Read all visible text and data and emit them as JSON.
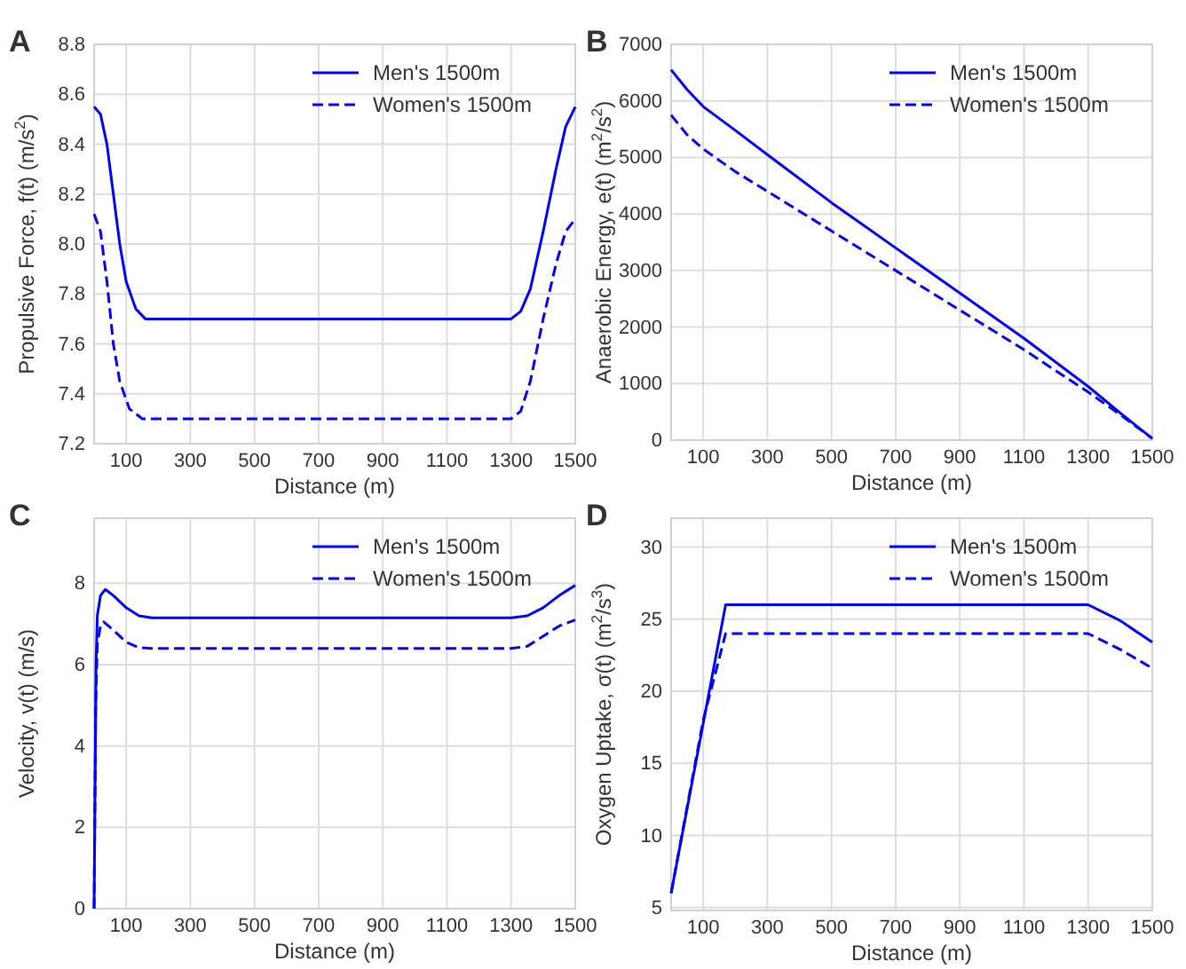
{
  "chart_data": [
    {
      "type": "line",
      "title": "A",
      "xlabel": "Distance (m)",
      "ylabel": "Propulsive Force, f(t)  (m/s$^{2}$)",
      "xlim": [
        0,
        1500
      ],
      "xticks": [
        100,
        300,
        500,
        700,
        900,
        1100,
        1300,
        1500
      ],
      "ylim": [
        7.2,
        8.8
      ],
      "yticks": [
        {
          "value": 7.2,
          "label": "7.2"
        },
        {
          "value": 7.4,
          "label": "7.4"
        },
        {
          "value": 7.6,
          "label": "7.6"
        },
        {
          "value": 7.8,
          "label": "7.8"
        },
        {
          "value": 8.0,
          "label": "8.0"
        },
        {
          "value": 8.2,
          "label": "8.2"
        },
        {
          "value": 8.4,
          "label": "8.4"
        },
        {
          "value": 8.6,
          "label": "8.6"
        },
        {
          "value": 8.8,
          "label": "8.8"
        }
      ],
      "grid": true,
      "legend": "top right",
      "series": [
        {
          "name": "Men's 1500m",
          "color": "#0000ff",
          "line_style": "solid",
          "x": [
            0,
            20,
            40,
            60,
            80,
            100,
            130,
            160,
            1300,
            1330,
            1360,
            1400,
            1440,
            1470,
            1500
          ],
          "values": [
            8.55,
            8.52,
            8.4,
            8.2,
            8.0,
            7.85,
            7.74,
            7.7,
            7.7,
            7.73,
            7.82,
            8.05,
            8.3,
            8.47,
            8.55
          ]
        },
        {
          "name": "Women's 1500m",
          "color": "#0000ff",
          "line_style": "dashed",
          "x": [
            0,
            20,
            40,
            60,
            80,
            110,
            150,
            1300,
            1330,
            1360,
            1400,
            1440,
            1470,
            1500
          ],
          "values": [
            8.12,
            8.05,
            7.85,
            7.6,
            7.45,
            7.34,
            7.3,
            7.3,
            7.33,
            7.45,
            7.7,
            7.92,
            8.05,
            8.1
          ]
        }
      ]
    },
    {
      "type": "line",
      "title": "B",
      "xlabel": "Distance (m)",
      "ylabel": "Anaerobic Energy, e(t)  (m$^{2}$/s$^{2}$)",
      "xlim": [
        0,
        1500
      ],
      "xticks": [
        100,
        300,
        500,
        700,
        900,
        1100,
        1300,
        1500
      ],
      "ylim": [
        0,
        7000
      ],
      "yticks": [
        0,
        1000,
        2000,
        3000,
        4000,
        5000,
        6000,
        7000
      ],
      "grid": true,
      "legend": "top right",
      "series": [
        {
          "name": "Men's 1500m",
          "color": "#0000ff",
          "line_style": "solid",
          "x": [
            0,
            50,
            100,
            200,
            300,
            500,
            700,
            900,
            1100,
            1300,
            1400,
            1500
          ],
          "values": [
            6550,
            6200,
            5900,
            5480,
            5050,
            4200,
            3400,
            2600,
            1800,
            950,
            480,
            30
          ]
        },
        {
          "name": "Women's 1500m",
          "color": "#0000ff",
          "line_style": "dashed",
          "x": [
            0,
            50,
            100,
            200,
            300,
            500,
            700,
            900,
            1100,
            1300,
            1400,
            1500
          ],
          "values": [
            5750,
            5400,
            5150,
            4750,
            4400,
            3700,
            3000,
            2300,
            1600,
            850,
            450,
            30
          ]
        }
      ]
    },
    {
      "type": "line",
      "title": "C",
      "xlabel": "Distance (m)",
      "ylabel": "Velocity, v(t)  (m/s)",
      "xlim": [
        0,
        1500
      ],
      "xticks": [
        100,
        300,
        500,
        700,
        900,
        1100,
        1300,
        1500
      ],
      "ylim": [
        0,
        9.6
      ],
      "yticks": [
        0,
        2,
        4,
        6,
        8
      ],
      "grid": true,
      "legend": "top right",
      "series": [
        {
          "name": "Men's 1500m",
          "color": "#0000ff",
          "line_style": "solid",
          "x": [
            0,
            3,
            6,
            10,
            20,
            35,
            60,
            100,
            140,
            180,
            1300,
            1350,
            1400,
            1450,
            1500
          ],
          "values": [
            0,
            3,
            6,
            7.2,
            7.7,
            7.85,
            7.7,
            7.4,
            7.2,
            7.15,
            7.15,
            7.2,
            7.4,
            7.7,
            7.95
          ]
        },
        {
          "name": "Women's 1500m",
          "color": "#0000ff",
          "line_style": "dashed",
          "x": [
            0,
            5,
            10,
            20,
            30,
            60,
            100,
            140,
            180,
            1300,
            1350,
            1400,
            1450,
            1500
          ],
          "values": [
            0,
            5,
            6.5,
            6.95,
            7.05,
            6.85,
            6.55,
            6.42,
            6.4,
            6.4,
            6.45,
            6.7,
            6.95,
            7.1
          ]
        }
      ]
    },
    {
      "type": "line",
      "title": "D",
      "xlabel": "Distance (m)",
      "ylabel": "Oxygen Uptake, σ(t)  (m$^{2}$/s$^{3}$)",
      "xlim": [
        0,
        1500
      ],
      "xticks": [
        100,
        300,
        500,
        700,
        900,
        1100,
        1300,
        1500
      ],
      "ylim": [
        4.8,
        32
      ],
      "yticks": [
        5,
        10,
        15,
        20,
        25,
        30
      ],
      "grid": true,
      "legend": "top right",
      "series": [
        {
          "name": "Men's 1500m",
          "color": "#0000ff",
          "line_style": "solid",
          "x": [
            0,
            170,
            1300,
            1400,
            1500
          ],
          "values": [
            6,
            26,
            26,
            24.9,
            23.4
          ]
        },
        {
          "name": "Women's 1500m",
          "color": "#0000ff",
          "line_style": "dashed",
          "x": [
            0,
            100,
            170,
            1300,
            1400,
            1500
          ],
          "values": [
            6,
            18,
            24,
            24,
            22.9,
            21.6
          ]
        }
      ]
    }
  ]
}
